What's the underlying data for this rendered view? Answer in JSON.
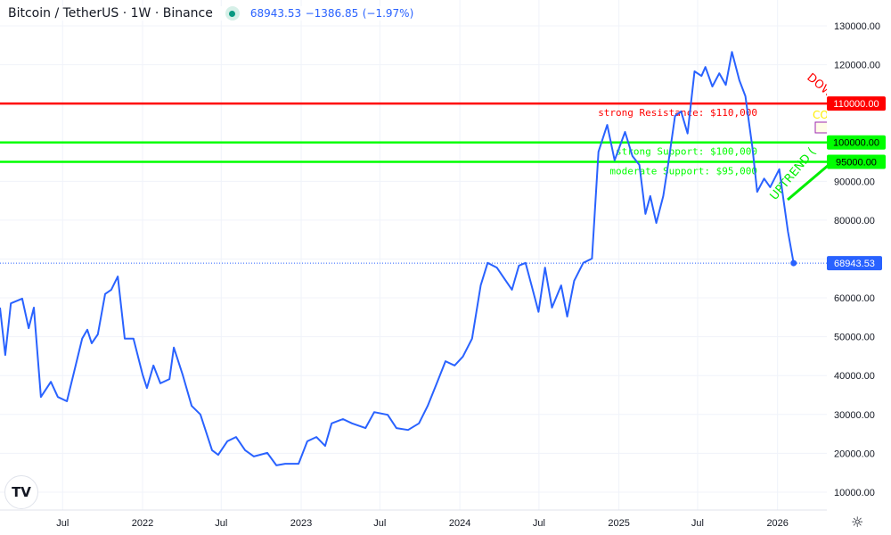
{
  "header": {
    "title": "Bitcoin / TetherUS · 1W · Binance",
    "last": "68943.53",
    "change": "−1386.85",
    "change_pct": "(−1.97%)",
    "status_color": "#089981"
  },
  "chart_data": {
    "type": "line",
    "symbol": "Bitcoin / TetherUS",
    "interval": "1W",
    "exchange": "Binance",
    "line_color": "#2962ff",
    "ylim": [
      5000,
      135000
    ],
    "y_ticks": [
      130000,
      120000,
      110000,
      100000,
      95000,
      90000,
      80000,
      70000,
      60000,
      50000,
      40000,
      30000,
      20000,
      10000
    ],
    "y_tick_labels": [
      "130000.00",
      "120000.00",
      "110000.00",
      "100000.00",
      "95000.00",
      "90000.00",
      "80000.00",
      "70000.00",
      "60000.00",
      "50000.00",
      "40000.00",
      "30000.00",
      "20000.00",
      "10000.00"
    ],
    "x_ticks": [
      {
        "date": "2021-07-01",
        "label": "Jul"
      },
      {
        "date": "2022-01-01",
        "label": "2022"
      },
      {
        "date": "2022-07-01",
        "label": "Jul"
      },
      {
        "date": "2023-01-01",
        "label": "2023"
      },
      {
        "date": "2023-07-01",
        "label": "Jul"
      },
      {
        "date": "2024-01-01",
        "label": "2024"
      },
      {
        "date": "2024-07-01",
        "label": "Jul"
      },
      {
        "date": "2025-01-01",
        "label": "2025"
      },
      {
        "date": "2025-07-01",
        "label": "Jul"
      },
      {
        "date": "2026-01-01",
        "label": "2026"
      }
    ],
    "grid": true,
    "series": [
      {
        "points": [
          [
            "2021-02-07",
            57500
          ],
          [
            "2021-02-19",
            45300
          ],
          [
            "2021-03-04",
            58600
          ],
          [
            "2021-03-30",
            59800
          ],
          [
            "2021-04-14",
            52200
          ],
          [
            "2021-04-26",
            57500
          ],
          [
            "2021-05-12",
            34500
          ],
          [
            "2021-06-04",
            38400
          ],
          [
            "2021-06-20",
            34500
          ],
          [
            "2021-07-11",
            33400
          ],
          [
            "2021-07-31",
            42600
          ],
          [
            "2021-08-15",
            49500
          ],
          [
            "2021-08-27",
            51800
          ],
          [
            "2021-09-06",
            48300
          ],
          [
            "2021-09-20",
            50600
          ],
          [
            "2021-10-07",
            61000
          ],
          [
            "2021-10-21",
            62100
          ],
          [
            "2021-11-05",
            65500
          ],
          [
            "2021-11-21",
            49500
          ],
          [
            "2021-12-11",
            49500
          ],
          [
            "2022-01-01",
            40300
          ],
          [
            "2022-01-11",
            36800
          ],
          [
            "2022-01-26",
            42600
          ],
          [
            "2022-02-11",
            38000
          ],
          [
            "2022-03-04",
            39100
          ],
          [
            "2022-03-14",
            47200
          ],
          [
            "2022-04-03",
            40300
          ],
          [
            "2022-04-24",
            32200
          ],
          [
            "2022-05-14",
            30000
          ],
          [
            "2022-06-10",
            20800
          ],
          [
            "2022-06-24",
            19600
          ],
          [
            "2022-07-15",
            23100
          ],
          [
            "2022-08-04",
            24200
          ],
          [
            "2022-08-25",
            20800
          ],
          [
            "2022-09-14",
            19200
          ],
          [
            "2022-10-15",
            20100
          ],
          [
            "2022-11-05",
            16900
          ],
          [
            "2022-11-25",
            17300
          ],
          [
            "2022-12-26",
            17300
          ],
          [
            "2023-01-15",
            23100
          ],
          [
            "2023-02-05",
            24200
          ],
          [
            "2023-02-25",
            21900
          ],
          [
            "2023-03-12",
            27700
          ],
          [
            "2023-04-07",
            28800
          ],
          [
            "2023-04-28",
            27700
          ],
          [
            "2023-05-29",
            26500
          ],
          [
            "2023-06-18",
            30600
          ],
          [
            "2023-07-19",
            29900
          ],
          [
            "2023-08-08",
            26500
          ],
          [
            "2023-09-04",
            26000
          ],
          [
            "2023-09-29",
            27700
          ],
          [
            "2023-10-19",
            32200
          ],
          [
            "2023-11-09",
            38000
          ],
          [
            "2023-11-29",
            43700
          ],
          [
            "2023-12-20",
            42600
          ],
          [
            "2024-01-08",
            44900
          ],
          [
            "2024-01-29",
            49500
          ],
          [
            "2024-02-18",
            63200
          ],
          [
            "2024-03-05",
            69000
          ],
          [
            "2024-03-26",
            67800
          ],
          [
            "2024-04-09",
            65500
          ],
          [
            "2024-04-30",
            62100
          ],
          [
            "2024-05-16",
            68300
          ],
          [
            "2024-05-31",
            69000
          ],
          [
            "2024-06-14",
            63200
          ],
          [
            "2024-06-30",
            56400
          ],
          [
            "2024-07-15",
            67800
          ],
          [
            "2024-07-31",
            57500
          ],
          [
            "2024-08-21",
            63200
          ],
          [
            "2024-09-04",
            55200
          ],
          [
            "2024-09-20",
            64400
          ],
          [
            "2024-10-11",
            69000
          ],
          [
            "2024-10-31",
            70100
          ],
          [
            "2024-11-15",
            97600
          ],
          [
            "2024-12-05",
            104500
          ],
          [
            "2024-12-22",
            95400
          ],
          [
            "2025-01-15",
            102700
          ],
          [
            "2025-02-01",
            96500
          ],
          [
            "2025-02-17",
            94200
          ],
          [
            "2025-03-03",
            81600
          ],
          [
            "2025-03-14",
            86200
          ],
          [
            "2025-03-28",
            79300
          ],
          [
            "2025-04-13",
            86200
          ],
          [
            "2025-04-24",
            94200
          ],
          [
            "2025-05-10",
            106800
          ],
          [
            "2025-05-24",
            108000
          ],
          [
            "2025-06-08",
            102300
          ],
          [
            "2025-06-24",
            118300
          ],
          [
            "2025-07-10",
            117100
          ],
          [
            "2025-07-19",
            119400
          ],
          [
            "2025-08-04",
            114400
          ],
          [
            "2025-08-20",
            117800
          ],
          [
            "2025-09-04",
            114800
          ],
          [
            "2025-09-18",
            123300
          ],
          [
            "2025-10-05",
            116000
          ],
          [
            "2025-10-19",
            111900
          ],
          [
            "2025-11-04",
            98800
          ],
          [
            "2025-11-15",
            87300
          ],
          [
            "2025-12-01",
            90700
          ],
          [
            "2025-12-15",
            88500
          ],
          [
            "2026-01-05",
            93100
          ],
          [
            "2026-01-15",
            85000
          ],
          [
            "2026-01-25",
            77000
          ],
          [
            "2026-02-07",
            68943.53
          ]
        ]
      }
    ],
    "last_price_label": "68943.53",
    "horizontal_levels": [
      {
        "value": 110000,
        "color": "#ff0000",
        "label": "strong Resistance: $110,000",
        "axis_label": "110000.00"
      },
      {
        "value": 100000,
        "color": "#00ff00",
        "label": "strong Support: $100,000",
        "axis_label": "100000.00"
      },
      {
        "value": 95000,
        "color": "#00ff00",
        "label": "moderate Support: $95,000",
        "axis_label": "95000.00"
      }
    ],
    "annotations": {
      "uptrend_text": "UPTREND (",
      "uptrend_color": "#00ee00",
      "downtrend_text": "DOW",
      "downtrend_color": "#ff0000",
      "yellow_text": "CO",
      "yellow_color": "#ffee00"
    }
  },
  "footer": {
    "logo_text": "TV"
  }
}
